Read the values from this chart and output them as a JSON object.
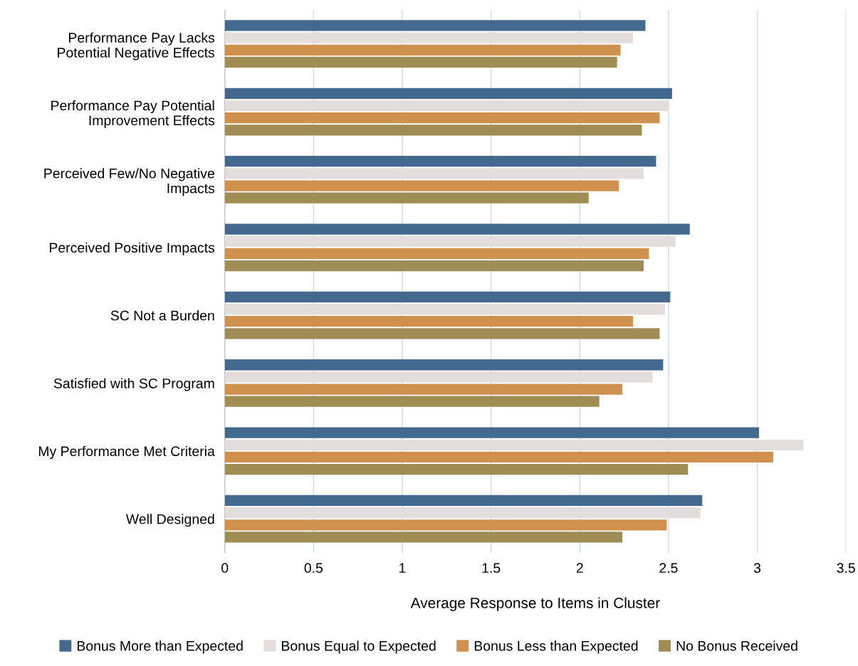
{
  "chart_data": {
    "type": "bar",
    "orientation": "horizontal",
    "xlabel": "Average Response to Items in Cluster",
    "categories": [
      "Performance Pay Lacks\nPotential Negative Effects",
      "Performance Pay Potential\nImprovement Effects",
      "Perceived Few/No Negative\nImpacts",
      "Perceived Positive Impacts",
      "SC Not a Burden",
      "Satisfied with SC Program",
      "My Performance Met Criteria",
      "Well Designed"
    ],
    "series": [
      {
        "name": "Bonus More than Expected",
        "color": "#44698f",
        "values": [
          2.37,
          2.52,
          2.43,
          2.62,
          2.51,
          2.47,
          3.01,
          2.69
        ]
      },
      {
        "name": "Bonus Equal to Expected",
        "color": "#e3dedb",
        "values": [
          2.3,
          2.5,
          2.36,
          2.54,
          2.48,
          2.41,
          3.26,
          2.68
        ]
      },
      {
        "name": "Bonus Less than Expected",
        "color": "#cf914d",
        "values": [
          2.23,
          2.45,
          2.22,
          2.39,
          2.3,
          2.24,
          3.09,
          2.49
        ]
      },
      {
        "name": "No Bonus Received",
        "color": "#a08c55",
        "values": [
          2.21,
          2.35,
          2.05,
          2.36,
          2.45,
          2.11,
          2.61,
          2.24
        ]
      }
    ],
    "xlim": [
      0,
      3.5
    ],
    "xticks": [
      0,
      0.5,
      1,
      1.5,
      2,
      2.5,
      3,
      3.5
    ],
    "grid": "x",
    "legend": "bottom"
  }
}
